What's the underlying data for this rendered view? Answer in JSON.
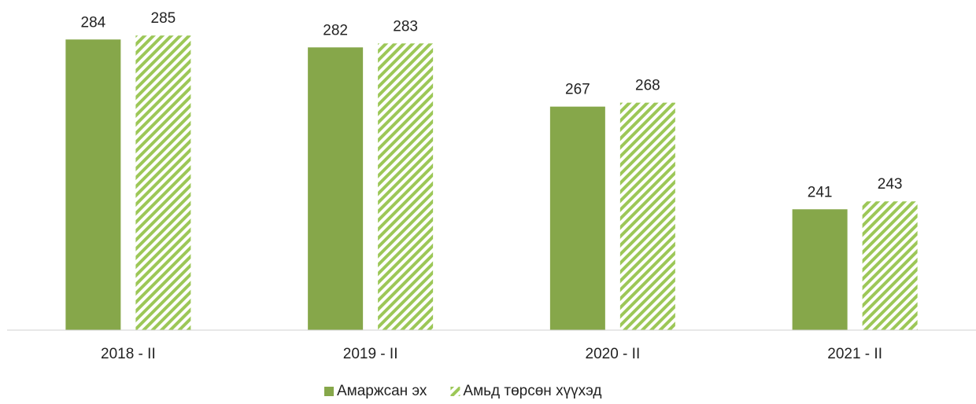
{
  "chart_data": {
    "type": "bar",
    "categories": [
      "2018 - II",
      "2019 - II",
      "2020 - II",
      "2021 - II"
    ],
    "series": [
      {
        "name": "Амаржсан эх",
        "color": "#86a74a",
        "values": [
          284,
          282,
          267,
          241
        ]
      },
      {
        "name": "Амьд төрсөн хүүхэд",
        "color": "#9cc757",
        "values": [
          285,
          283,
          268,
          243
        ]
      }
    ],
    "ylim": [
      210.4,
      294
    ]
  }
}
